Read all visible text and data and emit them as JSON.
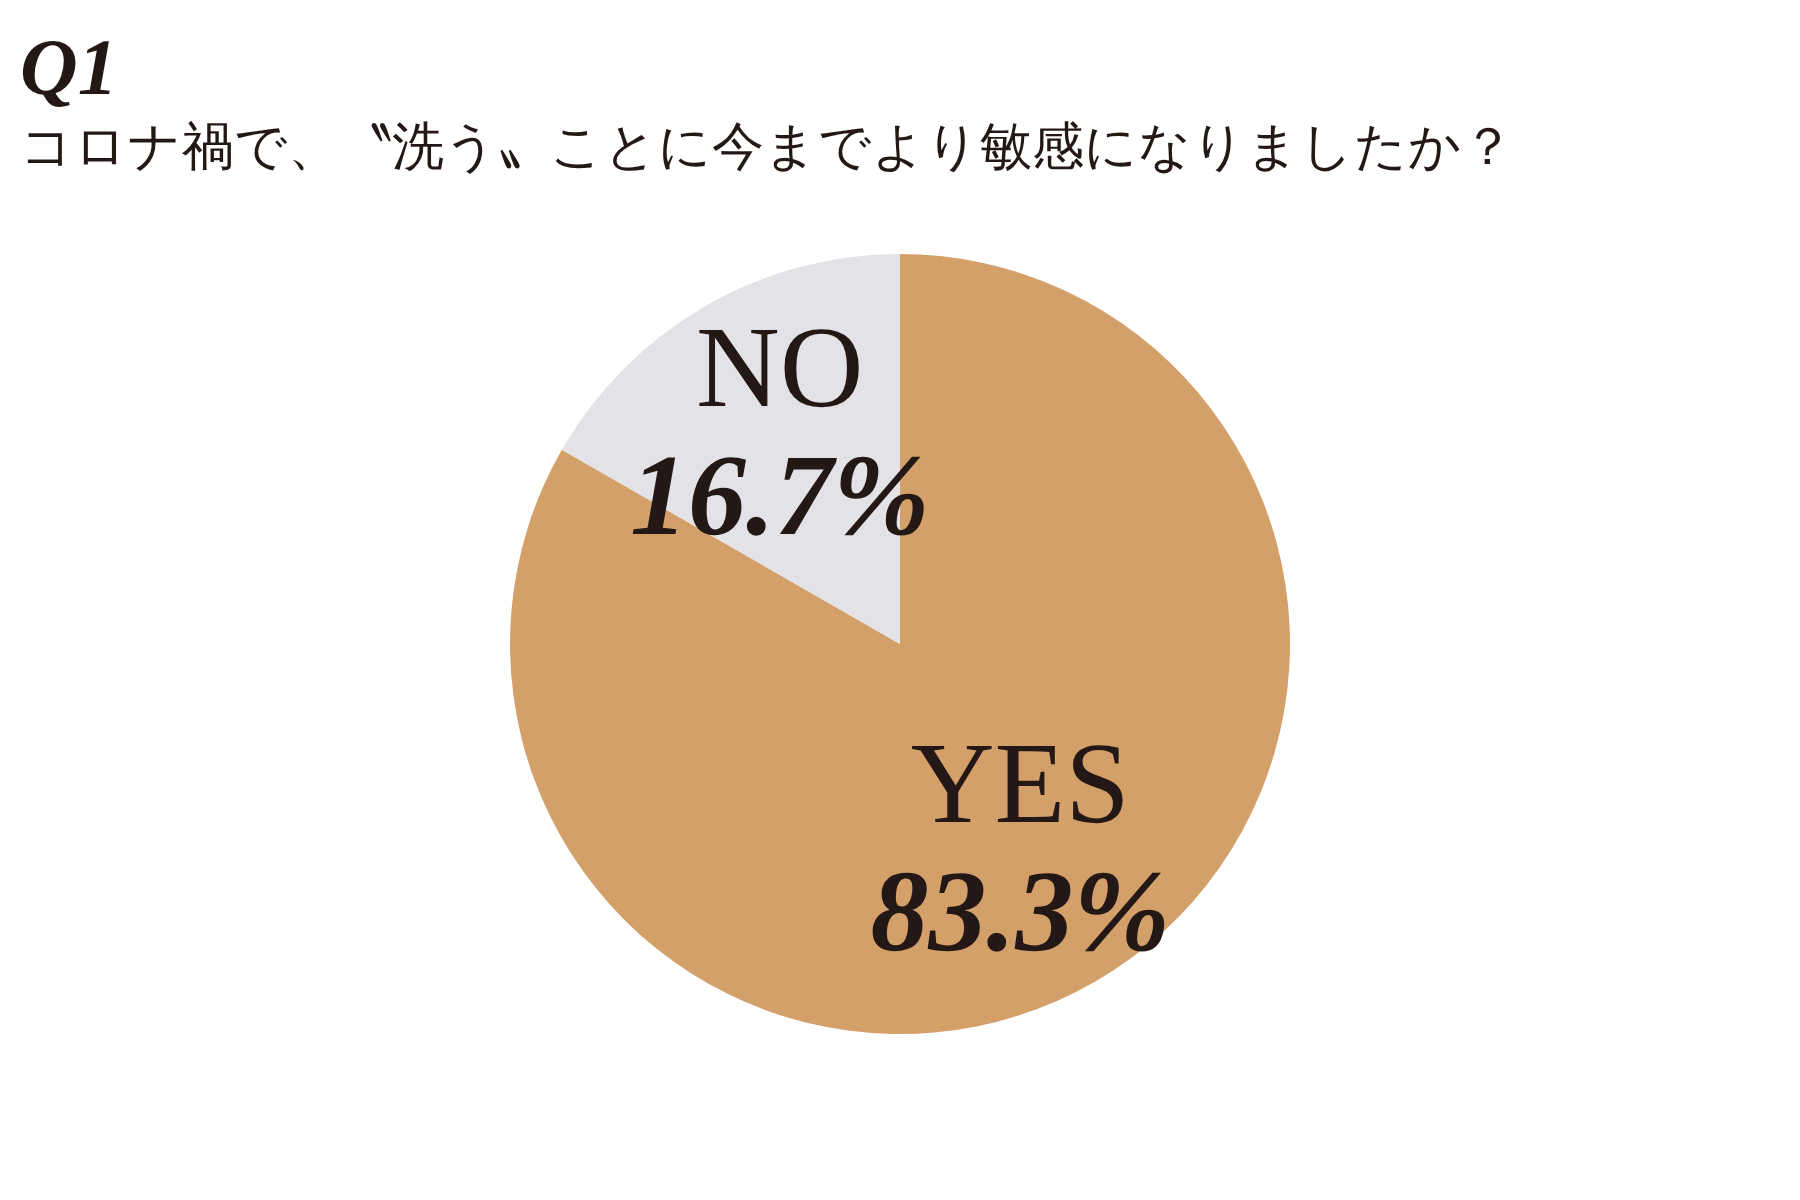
{
  "chart_data": {
    "type": "pie",
    "title": "Q1",
    "subtitle": "コロナ禍で、〝洗う〟ことに今までより敏感になりましたか？",
    "categories": [
      "YES",
      "NO"
    ],
    "values": [
      83.3,
      16.7
    ],
    "colors": [
      "#d4a06a",
      "#e3e3e7"
    ],
    "value_labels": [
      "83.3%",
      "16.7%"
    ]
  }
}
